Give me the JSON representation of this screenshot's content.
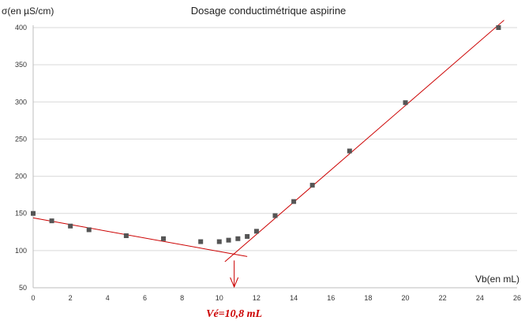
{
  "chart_data": {
    "type": "scatter",
    "title": "Dosage conductimétrique aspirine",
    "ylabel": "σ(en µS/cm)",
    "xlabel": "Vb(en mL)",
    "xlim": [
      0,
      26
    ],
    "ylim": [
      50,
      410
    ],
    "xticks": [
      0,
      2,
      4,
      6,
      8,
      10,
      12,
      14,
      16,
      18,
      20,
      22,
      24,
      26
    ],
    "yticks": [
      50,
      100,
      150,
      200,
      250,
      300,
      350,
      400
    ],
    "grid": "horizontal",
    "series": [
      {
        "x": [
          0,
          1,
          2,
          3,
          5,
          7,
          9,
          10,
          10.5,
          11,
          11.5,
          12,
          13,
          14,
          15,
          17,
          20,
          25
        ],
        "y": [
          150,
          140,
          133,
          128,
          120,
          116,
          112,
          112,
          114,
          116,
          119,
          126,
          147,
          166,
          188,
          234,
          299,
          400
        ]
      }
    ],
    "fit_lines": [
      {
        "from": [
          0,
          144
        ],
        "to": [
          11.5,
          92
        ]
      },
      {
        "from": [
          10.3,
          85
        ],
        "to": [
          25.3,
          410
        ]
      }
    ],
    "annotations": [
      {
        "text": "Vé=10,8 mL",
        "x": 10.8
      }
    ],
    "colors": {
      "points": "#555555",
      "lines": "#cc0000",
      "annotation": "#cc0000",
      "grid": "#d9d9d9"
    }
  }
}
